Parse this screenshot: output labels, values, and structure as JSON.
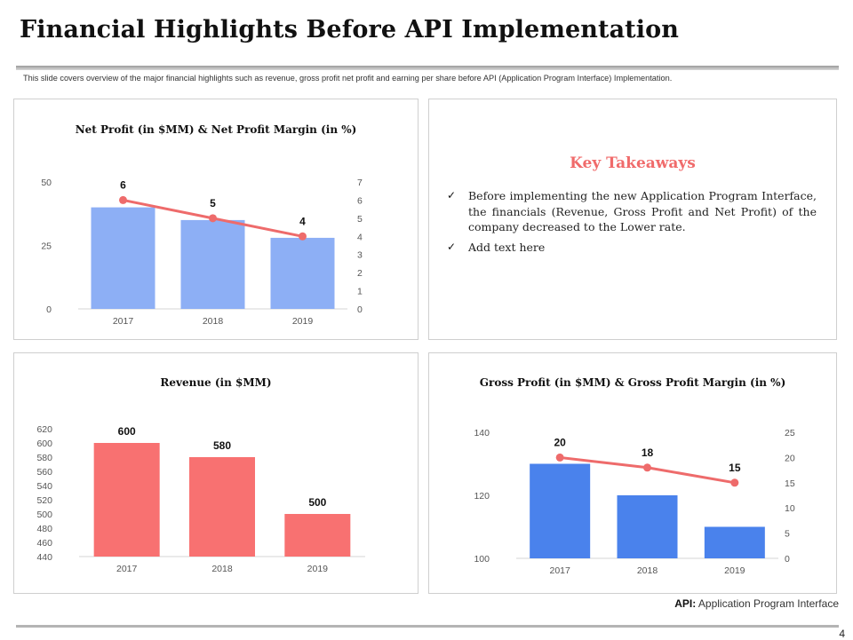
{
  "header": {
    "title": "Financial Highlights Before API Implementation",
    "subtitle": "This slide covers overview of the major financial highlights such as revenue, gross profit net profit and earning per share before API (Application Program Interface) Implementation."
  },
  "colors": {
    "light_blue": "#8daff5",
    "red": "#f87171",
    "blue": "#4a82ec",
    "line": "#ee6b6b"
  },
  "key_takeaways": {
    "title": "Key Takeaways",
    "items": [
      "Before implementing the new Application Program Interface, the financials (Revenue, Gross Profit and Net Profit) of the company decreased to the Lower rate.",
      "Add text here"
    ]
  },
  "footnote": {
    "label": "API:",
    "text": "Application Program Interface"
  },
  "page_number": "4",
  "chart_data": [
    {
      "type": "bar",
      "title": "Net Profit (in $MM) & Net Profit Margin (in %)",
      "categories": [
        "2017",
        "2018",
        "2019"
      ],
      "series": [
        {
          "name": "Net Profit",
          "type": "bar",
          "values": [
            40,
            35,
            28
          ]
        },
        {
          "name": "Net Profit Margin",
          "type": "line",
          "axis": "secondary",
          "values": [
            6,
            5,
            4
          ]
        }
      ],
      "y_ticks": [
        "0",
        "25",
        "50"
      ],
      "y2_ticks": [
        "0",
        "1",
        "2",
        "3",
        "4",
        "5",
        "6",
        "7"
      ],
      "ylim": [
        0,
        50
      ],
      "y2lim": [
        0,
        7
      ]
    },
    {
      "type": "bar",
      "title": "Revenue (in $MM)",
      "categories": [
        "2017",
        "2018",
        "2019"
      ],
      "series": [
        {
          "name": "Revenue",
          "type": "bar",
          "values": [
            600,
            580,
            500
          ]
        }
      ],
      "y_ticks": [
        "440",
        "460",
        "480",
        "500",
        "520",
        "540",
        "560",
        "580",
        "600",
        "620"
      ],
      "ylim": [
        440,
        620
      ]
    },
    {
      "type": "bar",
      "title": "Gross Profit (in $MM) & Gross Profit Margin (in %)",
      "categories": [
        "2017",
        "2018",
        "2019"
      ],
      "series": [
        {
          "name": "Gross Profit",
          "type": "bar",
          "values": [
            130,
            120,
            110
          ]
        },
        {
          "name": "Gross Profit Margin",
          "type": "line",
          "axis": "secondary",
          "values": [
            20,
            18,
            15
          ]
        }
      ],
      "y_ticks": [
        "100",
        "120",
        "140"
      ],
      "y2_ticks": [
        "0",
        "5",
        "10",
        "15",
        "20",
        "25"
      ],
      "ylim": [
        100,
        140
      ],
      "y2lim": [
        0,
        25
      ]
    }
  ]
}
